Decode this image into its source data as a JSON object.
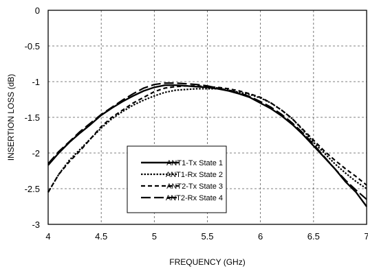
{
  "chart_data": {
    "type": "line",
    "xlabel": "FREQUENCY (GHz)",
    "ylabel": "INSERTION LOSS  (dB)",
    "xlim": [
      4,
      7
    ],
    "ylim": [
      -3,
      0
    ],
    "x_ticks": [
      4,
      4.5,
      5,
      5.5,
      6,
      6.5,
      7
    ],
    "x_tick_labels": [
      "4",
      "4.5",
      "5",
      "5.5",
      "6",
      "6.5",
      "7"
    ],
    "y_ticks": [
      0,
      -0.5,
      -1,
      -1.5,
      -2,
      -2.5,
      -3
    ],
    "y_tick_labels": [
      "0",
      "-0.5",
      "-1",
      "-1.5",
      "-2",
      "-2.5",
      "-3"
    ],
    "grid": true,
    "legend_position": "lower-center",
    "series": [
      {
        "name": "ANT1-Tx State 1",
        "style": "solid",
        "x": [
          4.0,
          4.1,
          4.2,
          4.3,
          4.4,
          4.5,
          4.6,
          4.7,
          4.8,
          4.9,
          5.0,
          5.1,
          5.2,
          5.3,
          5.4,
          5.5,
          5.6,
          5.7,
          5.8,
          5.9,
          6.0,
          6.1,
          6.2,
          6.3,
          6.4,
          6.5,
          6.6,
          6.7,
          6.8,
          6.9,
          7.0
        ],
        "y": [
          -2.17,
          -2.0,
          -1.85,
          -1.72,
          -1.6,
          -1.47,
          -1.37,
          -1.28,
          -1.2,
          -1.13,
          -1.08,
          -1.05,
          -1.05,
          -1.06,
          -1.07,
          -1.08,
          -1.1,
          -1.13,
          -1.17,
          -1.22,
          -1.3,
          -1.38,
          -1.48,
          -1.6,
          -1.74,
          -1.9,
          -2.06,
          -2.22,
          -2.4,
          -2.55,
          -2.75
        ]
      },
      {
        "name": "ANT1-Rx State 2",
        "style": "dotted",
        "x": [
          4.0,
          4.1,
          4.2,
          4.3,
          4.4,
          4.5,
          4.6,
          4.7,
          4.8,
          4.9,
          5.0,
          5.1,
          5.2,
          5.3,
          5.4,
          5.5,
          5.6,
          5.7,
          5.8,
          5.9,
          6.0,
          6.1,
          6.2,
          6.3,
          6.4,
          6.5,
          6.6,
          6.7,
          6.8,
          6.9,
          7.0
        ],
        "y": [
          -2.55,
          -2.3,
          -2.1,
          -1.95,
          -1.8,
          -1.65,
          -1.52,
          -1.42,
          -1.33,
          -1.26,
          -1.2,
          -1.15,
          -1.12,
          -1.11,
          -1.1,
          -1.1,
          -1.1,
          -1.12,
          -1.15,
          -1.18,
          -1.23,
          -1.3,
          -1.4,
          -1.52,
          -1.68,
          -1.85,
          -2.0,
          -2.15,
          -2.28,
          -2.4,
          -2.5
        ]
      },
      {
        "name": "ANT2-Tx State 3",
        "style": "dashed",
        "x": [
          4.0,
          4.1,
          4.2,
          4.3,
          4.4,
          4.5,
          4.6,
          4.7,
          4.8,
          4.9,
          5.0,
          5.1,
          5.2,
          5.3,
          5.4,
          5.5,
          5.6,
          5.7,
          5.8,
          5.9,
          6.0,
          6.1,
          6.2,
          6.3,
          6.4,
          6.5,
          6.6,
          6.7,
          6.8,
          6.9,
          7.0
        ],
        "y": [
          -2.55,
          -2.3,
          -2.12,
          -1.97,
          -1.8,
          -1.63,
          -1.5,
          -1.4,
          -1.3,
          -1.22,
          -1.14,
          -1.09,
          -1.07,
          -1.06,
          -1.06,
          -1.07,
          -1.08,
          -1.1,
          -1.13,
          -1.17,
          -1.22,
          -1.3,
          -1.4,
          -1.52,
          -1.67,
          -1.82,
          -1.97,
          -2.1,
          -2.22,
          -2.33,
          -2.45
        ]
      },
      {
        "name": "ANT2-Rx State 4",
        "style": "long-dash",
        "x": [
          4.0,
          4.1,
          4.2,
          4.3,
          4.4,
          4.5,
          4.6,
          4.7,
          4.8,
          4.9,
          5.0,
          5.1,
          5.2,
          5.3,
          5.4,
          5.5,
          5.6,
          5.7,
          5.8,
          5.9,
          6.0,
          6.1,
          6.2,
          6.3,
          6.4,
          6.5,
          6.6,
          6.7,
          6.8,
          6.9,
          7.0
        ],
        "y": [
          -2.15,
          -1.98,
          -1.84,
          -1.7,
          -1.58,
          -1.46,
          -1.36,
          -1.26,
          -1.17,
          -1.09,
          -1.04,
          -1.02,
          -1.02,
          -1.03,
          -1.04,
          -1.06,
          -1.09,
          -1.12,
          -1.16,
          -1.21,
          -1.28,
          -1.36,
          -1.46,
          -1.58,
          -1.72,
          -1.88,
          -2.05,
          -2.22,
          -2.38,
          -2.52,
          -2.65
        ]
      }
    ]
  }
}
